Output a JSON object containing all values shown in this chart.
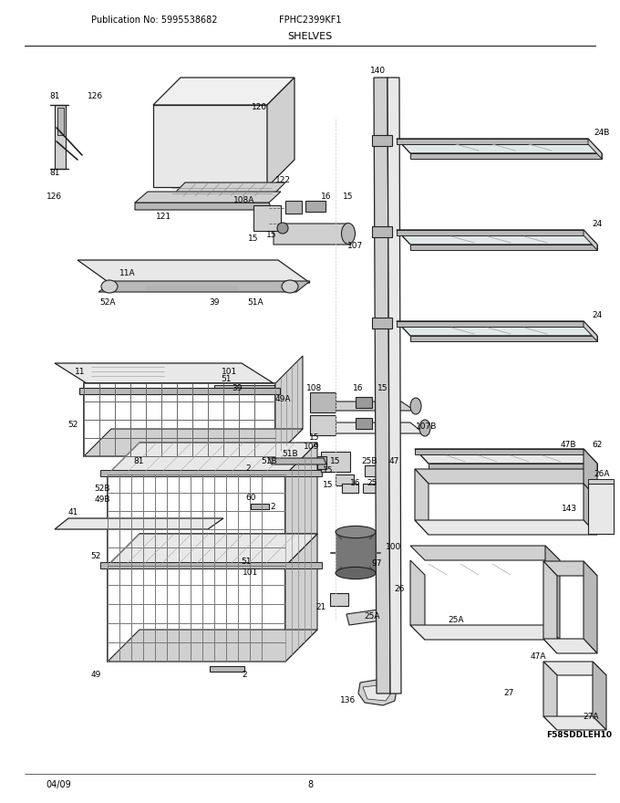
{
  "pub_no": "Publication No: 5995538682",
  "model": "FPHC2399KF1",
  "title": "SHELVES",
  "footer_left": "04/09",
  "footer_center": "8",
  "bg_color": "#ffffff",
  "text_color": "#000000",
  "fig_width": 6.8,
  "fig_height": 8.8,
  "dpi": 100
}
